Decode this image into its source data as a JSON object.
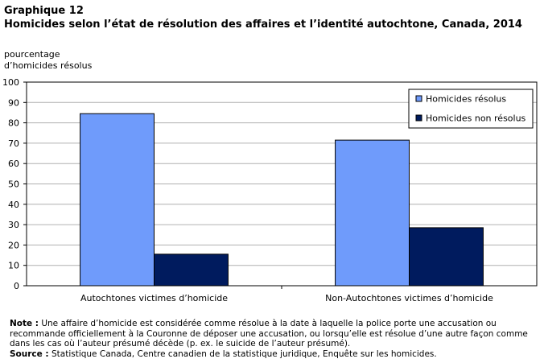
{
  "figure_number": "Graphique  12",
  "title": "Homicides selon l’état de résolution des affaires et l’identité autochtone, Canada, 2014",
  "chart_data": {
    "type": "bar",
    "categories": [
      "Autochtones victimes d’homicide",
      "Non-Autochtones victimes d’homicide"
    ],
    "series": [
      {
        "name": "Homicides résolus",
        "values": [
          84.5,
          71.5
        ],
        "color": "#6f9bfb"
      },
      {
        "name": "Homicides non résolus",
        "values": [
          15.5,
          28.5
        ],
        "color": "#001b5e"
      }
    ],
    "ylabel": "pourcentage d’homicides résolus",
    "ylabel_lines": [
      "pourcentage",
      "d’homicides résolus"
    ],
    "ylim": [
      0,
      100
    ],
    "yticks": [
      "0",
      "10",
      "20",
      "30",
      "40",
      "50",
      "60",
      "70",
      "80",
      "90",
      "100"
    ],
    "grid": true,
    "legend_position": "top-right"
  },
  "note_label": "Note :",
  "note_text": "Une affaire d’homicide est considérée comme résolue à la date à laquelle la police porte une accusation ou recommande officiellement à la Couronne de déposer une accusation, ou lorsqu’elle est résolue d’une autre façon comme dans les cas où l’auteur présumé décède (p. ex. le suicide de l’auteur présumé).",
  "source_label": "Source :",
  "source_text": "Statistique Canada, Centre canadien de la statistique juridique, Enquête sur les homicides."
}
